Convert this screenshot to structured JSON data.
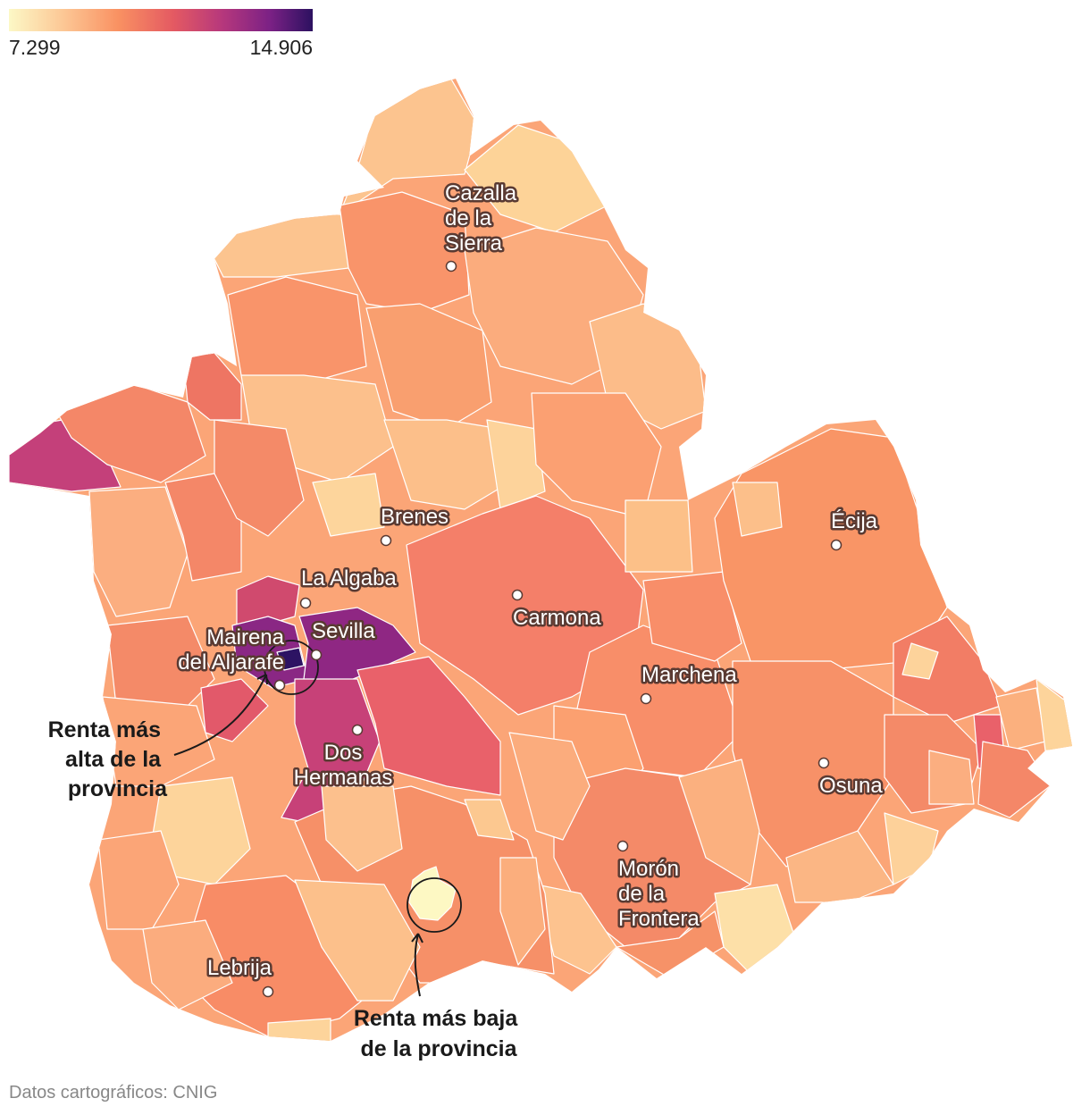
{
  "legend": {
    "min_label": "7.299",
    "max_label": "14.906",
    "gradient": [
      "#fcf8c6",
      "#fcc795",
      "#f99162",
      "#e45a62",
      "#b7387c",
      "#7b2185",
      "#2c1160"
    ]
  },
  "cities": [
    {
      "name": "Cazalla de la Sierra",
      "lines": [
        "Cazalla",
        "de la",
        "Sierra"
      ]
    },
    {
      "name": "Brenes",
      "lines": [
        "Brenes"
      ]
    },
    {
      "name": "Écija",
      "lines": [
        "Écija"
      ]
    },
    {
      "name": "La Algaba",
      "lines": [
        "La Algaba"
      ]
    },
    {
      "name": "Carmona",
      "lines": [
        "Carmona"
      ]
    },
    {
      "name": "Sevilla",
      "lines": [
        "Sevilla"
      ]
    },
    {
      "name": "Mairena del Aljarafe",
      "lines": [
        "Mairena",
        "del Aljarafe"
      ]
    },
    {
      "name": "Marchena",
      "lines": [
        "Marchena"
      ]
    },
    {
      "name": "Dos Hermanas",
      "lines": [
        "Dos",
        "Hermanas"
      ]
    },
    {
      "name": "Osuna",
      "lines": [
        "Osuna"
      ]
    },
    {
      "name": "Morón de la Frontera",
      "lines": [
        "Morón",
        "de la",
        "Frontera"
      ]
    },
    {
      "name": "Lebrija",
      "lines": [
        "Lebrija"
      ]
    }
  ],
  "annotations": {
    "highest": [
      "Renta más",
      "alta de la",
      "provincia"
    ],
    "lowest": [
      "Renta más baja",
      "de la provincia"
    ]
  },
  "source": "Datos cartográficos: CNIG"
}
